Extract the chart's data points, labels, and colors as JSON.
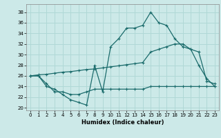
{
  "xlabel": "Humidex (Indice chaleur)",
  "xlim": [
    -0.5,
    23.5
  ],
  "ylim": [
    19.5,
    39.5
  ],
  "yticks": [
    20,
    22,
    24,
    26,
    28,
    30,
    32,
    34,
    36,
    38
  ],
  "xticks": [
    0,
    1,
    2,
    3,
    4,
    5,
    6,
    7,
    8,
    9,
    10,
    11,
    12,
    13,
    14,
    15,
    16,
    17,
    18,
    19,
    20,
    21,
    22,
    23
  ],
  "bg_color": "#cce9e8",
  "grid_color": "#b0d8d6",
  "line_color": "#1a6b6b",
  "line1_x": [
    0,
    1,
    2,
    3,
    4,
    5,
    6,
    7,
    8,
    9,
    10,
    11,
    12,
    13,
    14,
    15,
    16,
    17,
    18,
    19,
    20,
    21,
    22,
    23
  ],
  "line1_y": [
    26.0,
    26.0,
    24.0,
    23.5,
    22.5,
    21.5,
    21.0,
    20.5,
    28.0,
    23.0,
    31.5,
    33.0,
    35.0,
    35.0,
    35.5,
    38.0,
    36.0,
    35.5,
    33.0,
    31.5,
    31.0,
    28.0,
    25.5,
    24.0
  ],
  "line2_x": [
    0,
    1,
    2,
    3,
    4,
    5,
    6,
    7,
    8,
    9,
    10,
    11,
    12,
    13,
    14,
    15,
    16,
    17,
    18,
    19,
    20,
    21,
    22,
    23
  ],
  "line2_y": [
    26.0,
    26.2,
    26.3,
    26.5,
    26.7,
    26.8,
    27.0,
    27.2,
    27.3,
    27.5,
    27.7,
    27.9,
    28.1,
    28.3,
    28.5,
    30.5,
    31.0,
    31.5,
    32.0,
    32.0,
    31.0,
    30.5,
    25.0,
    24.5
  ],
  "line3_x": [
    0,
    1,
    2,
    3,
    4,
    5,
    6,
    7,
    8,
    9,
    10,
    11,
    12,
    13,
    14,
    15,
    16,
    17,
    18,
    19,
    20,
    21,
    22,
    23
  ],
  "line3_y": [
    26.0,
    26.0,
    24.5,
    23.0,
    23.0,
    22.5,
    22.5,
    23.0,
    23.5,
    23.5,
    23.5,
    23.5,
    23.5,
    23.5,
    23.5,
    24.0,
    24.0,
    24.0,
    24.0,
    24.0,
    24.0,
    24.0,
    24.0,
    24.0
  ]
}
